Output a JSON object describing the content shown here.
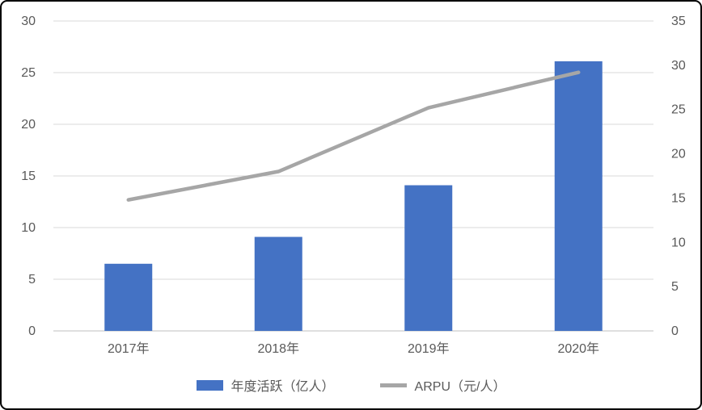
{
  "chart_data": {
    "type": "bar",
    "categories": [
      "2017年",
      "2018年",
      "2019年",
      "2020年"
    ],
    "series": [
      {
        "name": "年度活跃（亿人）",
        "type": "bar",
        "axis": "left",
        "color": "#4472C4",
        "values": [
          6.5,
          9.1,
          14.1,
          26.1
        ]
      },
      {
        "name": "ARPU（元/人）",
        "type": "line",
        "axis": "right",
        "color": "#A6A6A6",
        "values": [
          14.8,
          18.0,
          25.2,
          29.2
        ]
      }
    ],
    "left_axis": {
      "min": 0,
      "max": 30,
      "step": 5
    },
    "right_axis": {
      "min": 0,
      "max": 35,
      "step": 5
    },
    "grid": true,
    "legend_position": "bottom",
    "colors": {
      "gridline": "#D9D9D9",
      "axis_line": "#BFBFBF",
      "tick_text": "#595959"
    }
  }
}
